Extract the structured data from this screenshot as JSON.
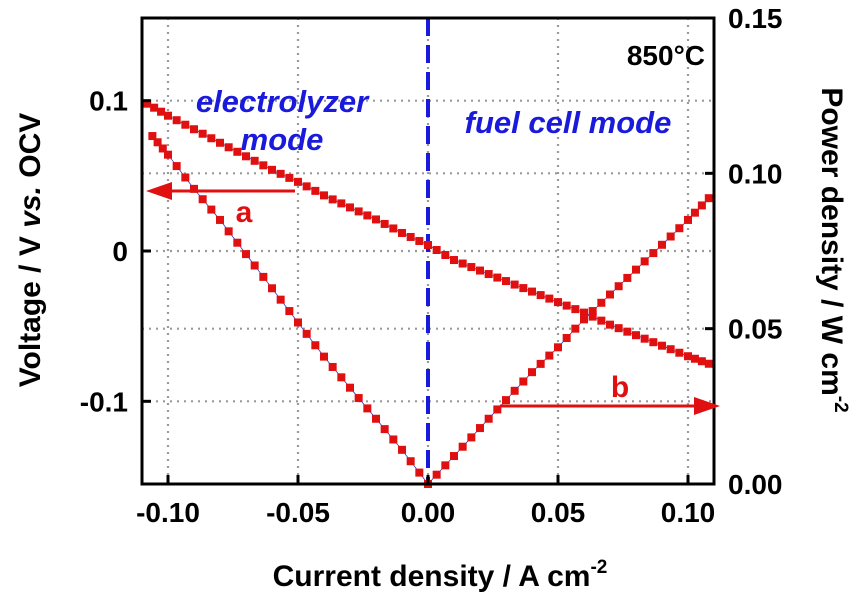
{
  "chart_data": {
    "type": "scatter",
    "xlabel": "Current density / A cm",
    "xlabel_sup": "-2",
    "ylabel_left": "Voltage / V vs. OCV",
    "ylabel_left_parts": [
      "Voltage / V ",
      "vs.",
      " OCV"
    ],
    "ylabel_right": "Power density / W cm",
    "ylabel_right_sup": "-2",
    "xlim": [
      -0.11,
      0.11
    ],
    "ylim_left": [
      -0.155,
      0.155
    ],
    "ylim_right": [
      0.0,
      0.15
    ],
    "x_ticks": [
      -0.1,
      -0.05,
      0.0,
      0.05,
      0.1
    ],
    "x_tick_labels": [
      "-0.10",
      "-0.05",
      "0.00",
      "0.05",
      "0.10"
    ],
    "y_left_ticks": [
      -0.1,
      0,
      0.1
    ],
    "y_left_tick_labels": [
      "-0.1",
      "0",
      "0.1"
    ],
    "y_right_ticks": [
      0.0,
      0.05,
      0.1,
      0.15
    ],
    "y_right_tick_labels": [
      "0.00",
      "0.05",
      "0.10",
      "0.15"
    ],
    "grid": true,
    "series": [
      {
        "axis": "left",
        "color": "#e01010",
        "x": [
          -0.108,
          -0.1,
          -0.09,
          -0.08,
          -0.07,
          -0.06,
          -0.05,
          -0.04,
          -0.03,
          -0.02,
          -0.01,
          0.0,
          0.01,
          0.02,
          0.03,
          0.04,
          0.05,
          0.06,
          0.07,
          0.08,
          0.09,
          0.1,
          0.108
        ],
        "y": [
          0.098,
          0.09,
          0.081,
          0.072,
          0.063,
          0.054,
          0.046,
          0.037,
          0.029,
          0.021,
          0.012,
          0.004,
          -0.006,
          -0.013,
          -0.02,
          -0.027,
          -0.034,
          -0.041,
          -0.049,
          -0.056,
          -0.063,
          -0.07,
          -0.075
        ]
      },
      {
        "axis": "right",
        "color": "#e01010",
        "x": [
          -0.106,
          -0.1,
          -0.09,
          -0.08,
          -0.07,
          -0.06,
          -0.05,
          -0.04,
          -0.03,
          -0.02,
          -0.01,
          0.0,
          0.01,
          0.02,
          0.03,
          0.04,
          0.05,
          0.06,
          0.07,
          0.08,
          0.09,
          0.1,
          0.108
        ],
        "y": [
          0.112,
          0.106,
          0.095,
          0.085,
          0.074,
          0.063,
          0.052,
          0.041,
          0.031,
          0.021,
          0.011,
          0.0,
          0.009,
          0.018,
          0.027,
          0.036,
          0.044,
          0.053,
          0.061,
          0.069,
          0.077,
          0.085,
          0.092
        ]
      }
    ],
    "annotations": {
      "temperature": "850°C",
      "electrolyzer_line1": "electrolyzer",
      "electrolyzer_line2": "mode",
      "fuel_cell": "fuel cell mode",
      "arrow_a_label": "a",
      "arrow_b_label": "b"
    },
    "mode_divider_x": 0.0
  }
}
